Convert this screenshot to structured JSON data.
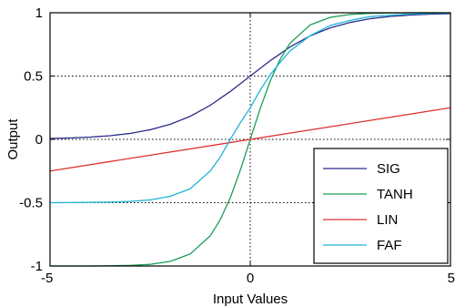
{
  "chart_data": {
    "type": "line",
    "title": "",
    "xlabel": "Input Values",
    "ylabel": "Output",
    "xlim": [
      -5,
      5
    ],
    "ylim": [
      -1,
      1
    ],
    "x_ticks": [
      -5,
      0,
      5
    ],
    "y_ticks": [
      -1,
      -0.5,
      0,
      0.5,
      1
    ],
    "x_tick_labels": [
      "-5",
      "0",
      "5"
    ],
    "y_tick_labels": [
      "-1",
      "-0.5",
      "0",
      "0.5",
      "1"
    ],
    "grid": "dotted lines at x = 0 and y = -0.5, 0, 0.5",
    "legend_position": "bottom-right",
    "series": [
      {
        "name": "SIG",
        "color": "#2b2b8a",
        "x": [
          -5,
          -4.5,
          -4,
          -3.5,
          -3,
          -2.5,
          -2,
          -1.5,
          -1,
          -0.5,
          0,
          0.5,
          1,
          1.5,
          2,
          2.5,
          3,
          3.5,
          4,
          4.5,
          5
        ],
        "values": [
          0.007,
          0.011,
          0.018,
          0.029,
          0.047,
          0.076,
          0.119,
          0.182,
          0.269,
          0.378,
          0.5,
          0.622,
          0.731,
          0.818,
          0.881,
          0.924,
          0.953,
          0.971,
          0.982,
          0.989,
          0.993
        ]
      },
      {
        "name": "TANH",
        "color": "#1a9e57",
        "x": [
          -5,
          -4.5,
          -4,
          -3.5,
          -3,
          -2.5,
          -2,
          -1.5,
          -1,
          -0.75,
          -0.5,
          -0.25,
          0,
          0.25,
          0.5,
          0.75,
          1,
          1.5,
          2,
          2.5,
          3,
          3.5,
          4,
          4.5,
          5
        ],
        "values": [
          -1.0,
          -1.0,
          -1.0,
          -0.998,
          -0.995,
          -0.987,
          -0.964,
          -0.905,
          -0.762,
          -0.635,
          -0.462,
          -0.245,
          0.0,
          0.245,
          0.462,
          0.635,
          0.762,
          0.905,
          0.964,
          0.987,
          0.995,
          0.998,
          1.0,
          1.0,
          1.0
        ]
      },
      {
        "name": "LIN",
        "color": "#e03030",
        "x": [
          -5,
          5
        ],
        "values": [
          -0.25,
          0.25
        ]
      },
      {
        "name": "FAF",
        "color": "#1fb5d6",
        "x": [
          -5,
          -4.5,
          -4,
          -3.5,
          -3,
          -2.5,
          -2,
          -1.5,
          -1,
          -0.75,
          -0.5,
          -0.25,
          0,
          0.25,
          0.5,
          0.75,
          1,
          1.5,
          2,
          2.5,
          3,
          3.5,
          4,
          4.5,
          5
        ],
        "values": [
          -0.5,
          -0.499,
          -0.497,
          -0.495,
          -0.49,
          -0.478,
          -0.45,
          -0.39,
          -0.25,
          -0.14,
          0.0,
          0.13,
          0.25,
          0.39,
          0.51,
          0.61,
          0.7,
          0.82,
          0.9,
          0.94,
          0.97,
          0.98,
          0.99,
          0.995,
          0.998
        ]
      }
    ]
  }
}
